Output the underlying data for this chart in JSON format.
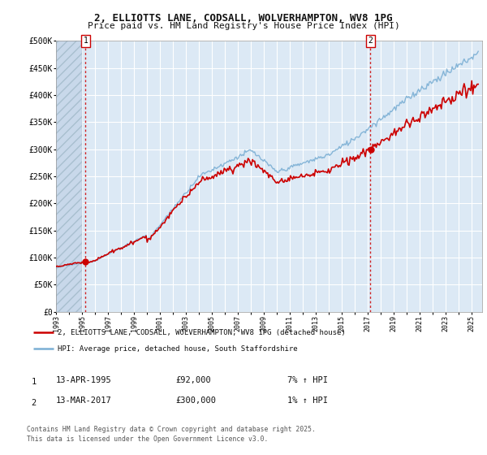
{
  "title_line1": "2, ELLIOTTS LANE, CODSALL, WOLVERHAMPTON, WV8 1PG",
  "title_line2": "Price paid vs. HM Land Registry's House Price Index (HPI)",
  "bg_color": "#dce9f5",
  "grid_color": "#ffffff",
  "ylim": [
    0,
    500000
  ],
  "yticks": [
    0,
    50000,
    100000,
    150000,
    200000,
    250000,
    300000,
    350000,
    400000,
    450000,
    500000
  ],
  "ytick_labels": [
    "£0",
    "£50K",
    "£100K",
    "£150K",
    "£200K",
    "£250K",
    "£300K",
    "£350K",
    "£400K",
    "£450K",
    "£500K"
  ],
  "line1_color": "#cc0000",
  "line2_color": "#7bafd4",
  "sale1_date": 1995.28,
  "sale1_price": 92000,
  "sale2_date": 2017.19,
  "sale2_price": 300000,
  "legend_label1": "2, ELLIOTTS LANE, CODSALL, WOLVERHAMPTON, WV8 1PG (detached house)",
  "legend_label2": "HPI: Average price, detached house, South Staffordshire",
  "annotation1_text": "13-APR-1995",
  "annotation1_price": "£92,000",
  "annotation1_hpi": "7% ↑ HPI",
  "annotation2_text": "13-MAR-2017",
  "annotation2_price": "£300,000",
  "annotation2_hpi": "1% ↑ HPI",
  "footer": "Contains HM Land Registry data © Crown copyright and database right 2025.\nThis data is licensed under the Open Government Licence v3.0."
}
